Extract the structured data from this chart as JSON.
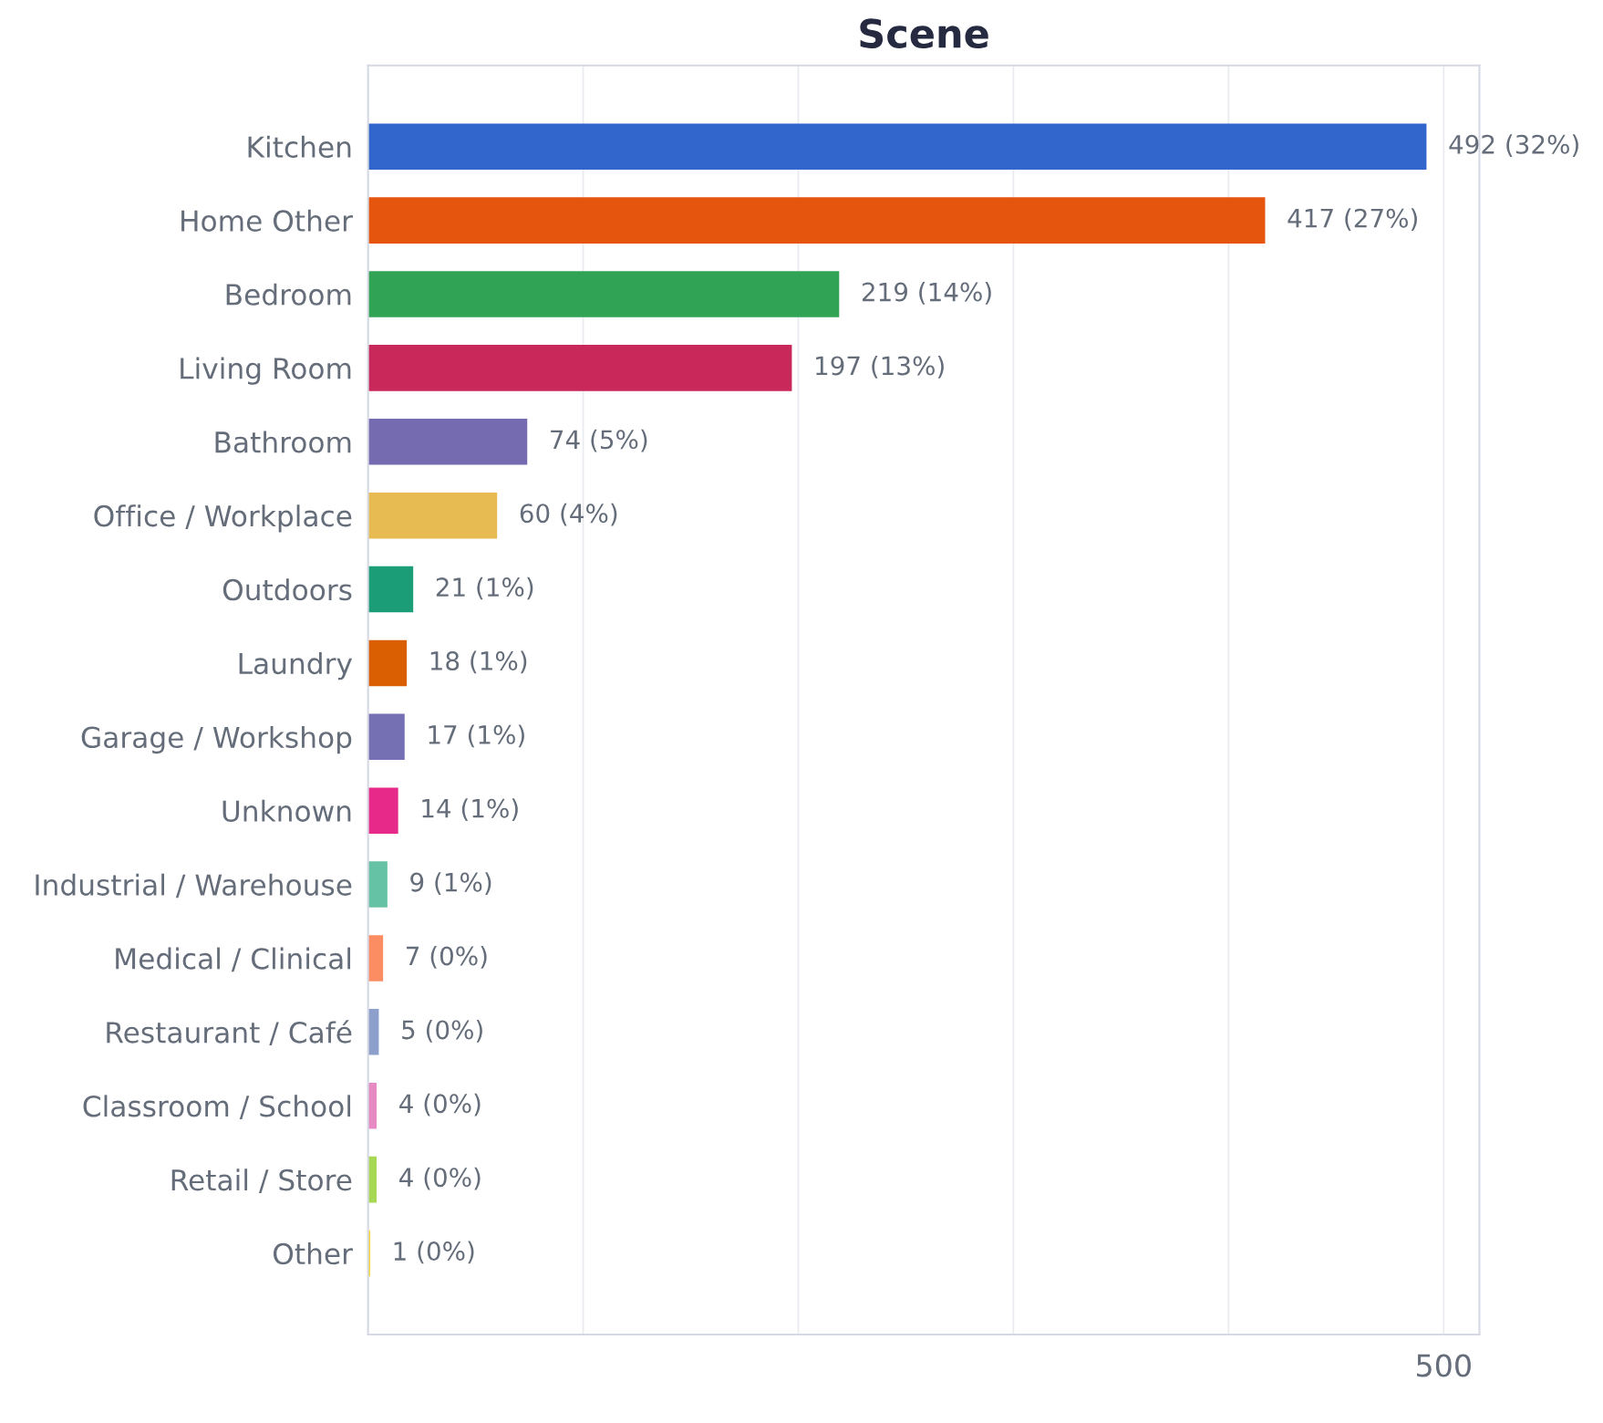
{
  "chart_data": {
    "type": "bar",
    "title": "Scene",
    "orientation": "horizontal",
    "categories": [
      "Kitchen",
      "Home Other",
      "Bedroom",
      "Living Room",
      "Bathroom",
      "Office / Workplace",
      "Outdoors",
      "Laundry",
      "Garage / Workshop",
      "Unknown",
      "Industrial / Warehouse",
      "Medical / Clinical",
      "Restaurant / Café",
      "Classroom / School",
      "Retail / Store",
      "Other"
    ],
    "values": [
      492,
      417,
      219,
      197,
      74,
      60,
      21,
      18,
      17,
      14,
      9,
      7,
      5,
      4,
      4,
      1
    ],
    "colors": [
      "#3366cc",
      "#e6550d",
      "#31a354",
      "#c9295a",
      "#756bb1",
      "#e7ba52",
      "#1b9e77",
      "#d95f02",
      "#7570b3",
      "#e7298a",
      "#66c2a5",
      "#fc8d62",
      "#8da0cb",
      "#e78ac3",
      "#a6d854",
      "#ffd92f"
    ],
    "value_labels": [
      "492 (32%)",
      "417 (27%)",
      "219 (14%)",
      "197 (13%)",
      "74 (5%)",
      "60 (4%)",
      "21 (1%)",
      "18 (1%)",
      "17 (1%)",
      "14 (1%)",
      "9 (1%)",
      "7 (0%)",
      "5 (0%)",
      "4 (0%)",
      "4 (0%)",
      "1 (0%)"
    ],
    "xlim": [
      0,
      516.6
    ],
    "xticks": [
      {
        "value": 0,
        "label": null
      },
      {
        "value": 100,
        "label": null
      },
      {
        "value": 200,
        "label": null
      },
      {
        "value": 300,
        "label": null
      },
      {
        "value": 400,
        "label": null
      },
      500
    ],
    "grid": "x"
  }
}
